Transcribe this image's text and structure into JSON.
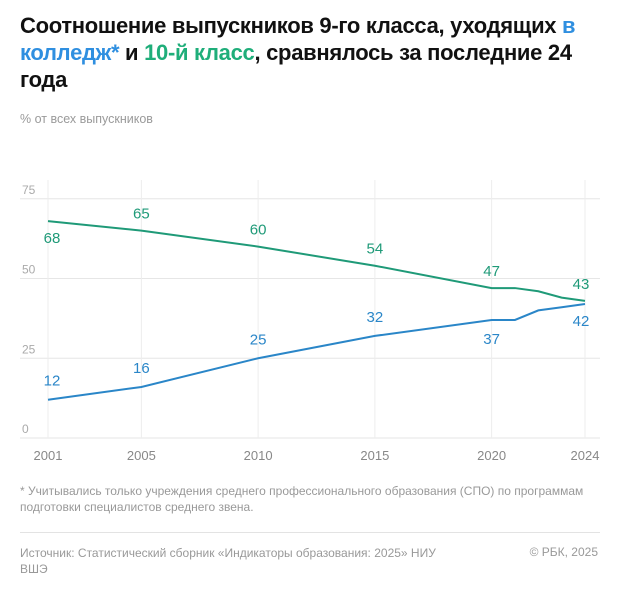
{
  "title": {
    "part1": "Соотношение выпускников 9-го класса, уходящих ",
    "part2": "в колледж*",
    "part3": " и ",
    "part4": "10-й класс",
    "part5": ", сравнялось за последние 24 года"
  },
  "chart_data": {
    "type": "line",
    "title": "Соотношение выпускников 9-го класса, уходящих в колледж* и 10-й класс, сравнялось за последние 24 года",
    "ylabel": "% от всех выпускников",
    "ylim": [
      0,
      80
    ],
    "xlim": [
      2001,
      2024
    ],
    "yticks": [
      0,
      25,
      50,
      75
    ],
    "xticks": [
      2001,
      2005,
      2010,
      2015,
      2020,
      2024
    ],
    "grid": true,
    "series": [
      {
        "name": "10-й класс",
        "color": "#1f9a78",
        "x": [
          2001,
          2005,
          2010,
          2015,
          2020,
          2021,
          2022,
          2023,
          2024
        ],
        "values": [
          68,
          65,
          60,
          54,
          47,
          47,
          46,
          44,
          43
        ],
        "labels": [
          [
            2001,
            68
          ],
          [
            2005,
            65
          ],
          [
            2010,
            60
          ],
          [
            2015,
            54
          ],
          [
            2020,
            47
          ],
          [
            2024,
            43
          ]
        ]
      },
      {
        "name": "в колледж*",
        "color": "#2a86c8",
        "x": [
          2001,
          2005,
          2010,
          2015,
          2020,
          2021,
          2022,
          2023,
          2024
        ],
        "values": [
          12,
          16,
          25,
          32,
          37,
          37,
          40,
          41,
          42
        ],
        "labels": [
          [
            2001,
            12
          ],
          [
            2005,
            16
          ],
          [
            2010,
            25
          ],
          [
            2015,
            32
          ],
          [
            2020,
            37
          ],
          [
            2024,
            42
          ]
        ]
      }
    ]
  },
  "footnote": "* Учитывались только учреждения среднего профессионального образования (СПО) по программам подготовки специалистов среднего звена.",
  "source": "Источник: Статистический сборник «Индикаторы образования: 2025» НИУ ВШЭ",
  "copyright": "© РБК, 2025"
}
